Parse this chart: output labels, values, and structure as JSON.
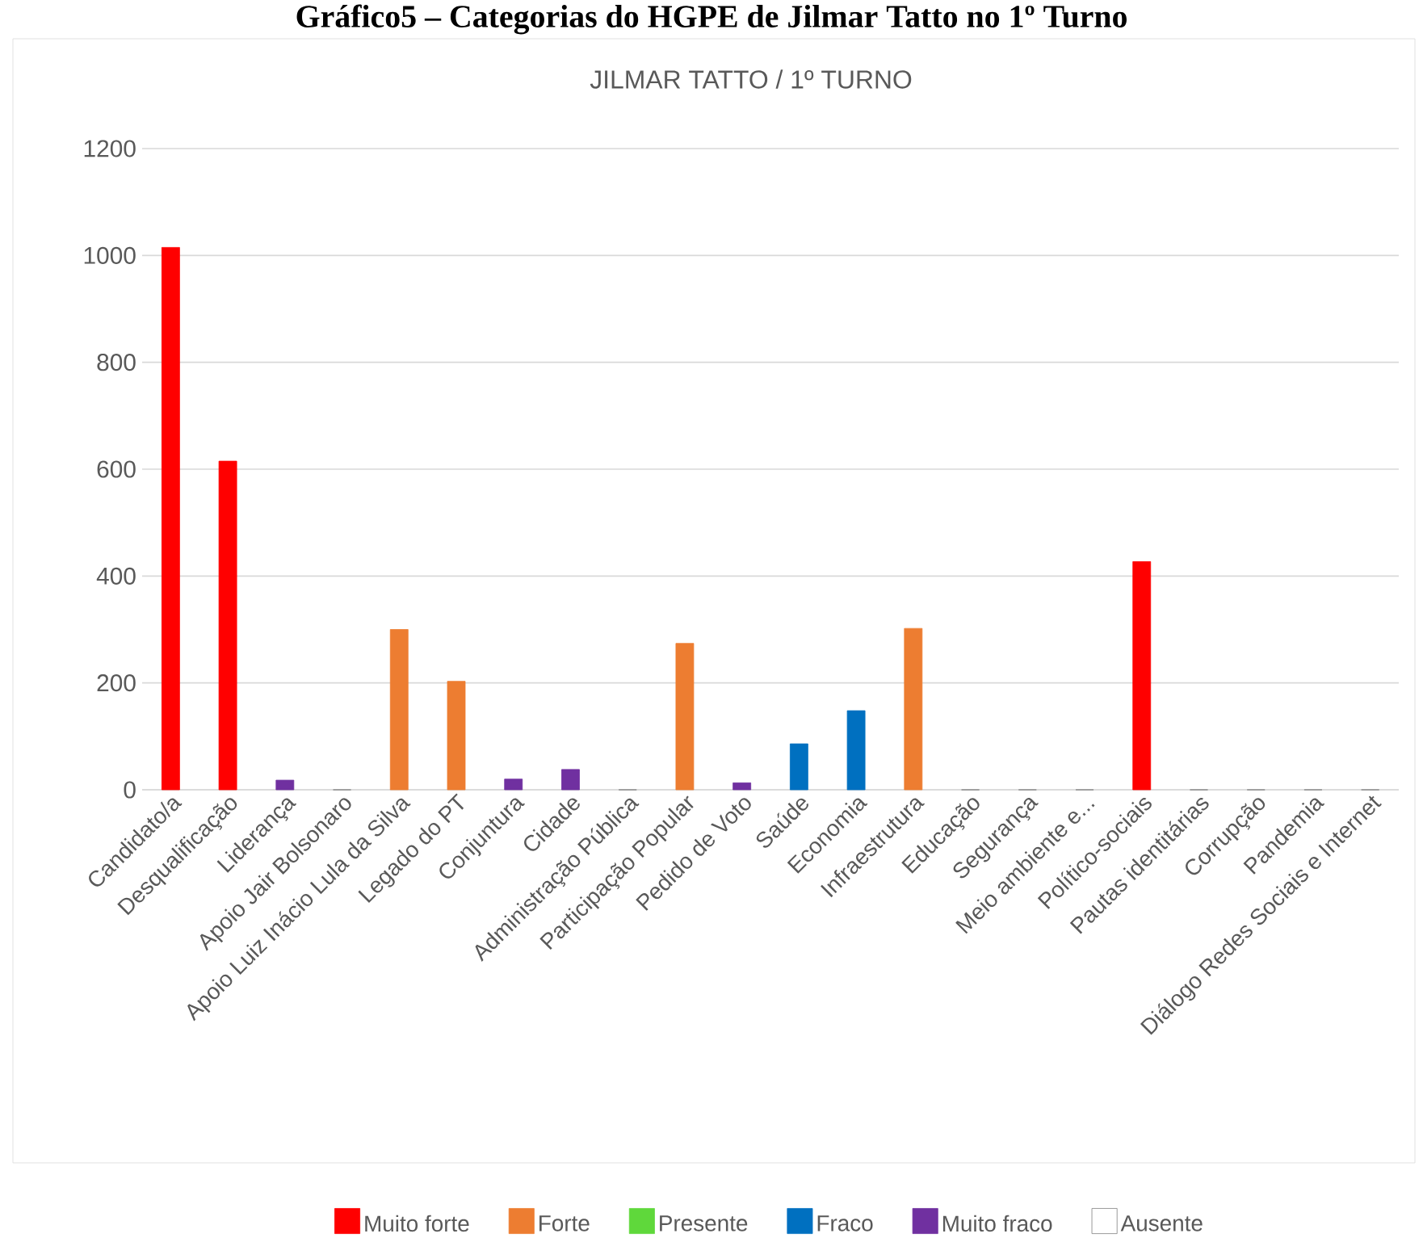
{
  "chart_data": {
    "type": "bar",
    "title": "Gráfico5 – Categorias do HGPE de Jilmar Tatto no 1º Turno",
    "subtitle": "JILMAR TATTO / 1º TURNO",
    "categories": [
      "Candidato/a",
      "Desqualificação",
      "Liderança",
      "Apoio Jair Bolsonaro",
      "Apoio Luiz Inácio Lula da Silva",
      "Legado do PT",
      "Conjuntura",
      "Cidade",
      "Administração Pública",
      "Participação Popular",
      "Pedido de Voto",
      "Saúde",
      "Economia",
      "Infraestrutura",
      "Educação",
      "Segurança",
      "Meio ambiente e...",
      "Político-sociais",
      "Pautas identitárias",
      "Corrupção",
      "Pandemia",
      "Diálogo Redes Sociais e Internet"
    ],
    "series": [
      {
        "name": "Muito forte",
        "color": "#ff0000",
        "values": [
          1015,
          615,
          null,
          null,
          null,
          null,
          null,
          null,
          null,
          null,
          null,
          null,
          null,
          null,
          null,
          null,
          null,
          427,
          null,
          null,
          null,
          null
        ]
      },
      {
        "name": "Forte",
        "color": "#ed7d31",
        "values": [
          null,
          null,
          null,
          null,
          300,
          203,
          null,
          null,
          null,
          274,
          null,
          null,
          null,
          302,
          null,
          null,
          null,
          null,
          null,
          null,
          null,
          null
        ]
      },
      {
        "name": "Presente",
        "color": "#5fd83b",
        "values": [
          null,
          null,
          null,
          null,
          null,
          null,
          null,
          null,
          null,
          null,
          null,
          null,
          null,
          null,
          null,
          null,
          null,
          null,
          null,
          null,
          null,
          null
        ]
      },
      {
        "name": "Fraco",
        "color": "#0070c0",
        "values": [
          null,
          null,
          null,
          null,
          null,
          null,
          null,
          null,
          null,
          null,
          null,
          86,
          148,
          null,
          null,
          null,
          null,
          null,
          null,
          null,
          null,
          null
        ]
      },
      {
        "name": "Muito fraco",
        "color": "#7030a0",
        "values": [
          null,
          null,
          18,
          null,
          null,
          null,
          20,
          38,
          null,
          null,
          13,
          null,
          null,
          null,
          null,
          null,
          null,
          null,
          null,
          null,
          null,
          null
        ]
      },
      {
        "name": "Ausente",
        "color": "#ffffff",
        "values": [
          null,
          null,
          null,
          0,
          null,
          null,
          null,
          null,
          0,
          null,
          null,
          null,
          null,
          null,
          0,
          0,
          0,
          null,
          0,
          0,
          0,
          0
        ]
      }
    ],
    "ylim": [
      0,
      1200
    ],
    "yticks": [
      0,
      200,
      400,
      600,
      800,
      1000,
      1200
    ],
    "grid": "y",
    "legend": "bottom"
  }
}
